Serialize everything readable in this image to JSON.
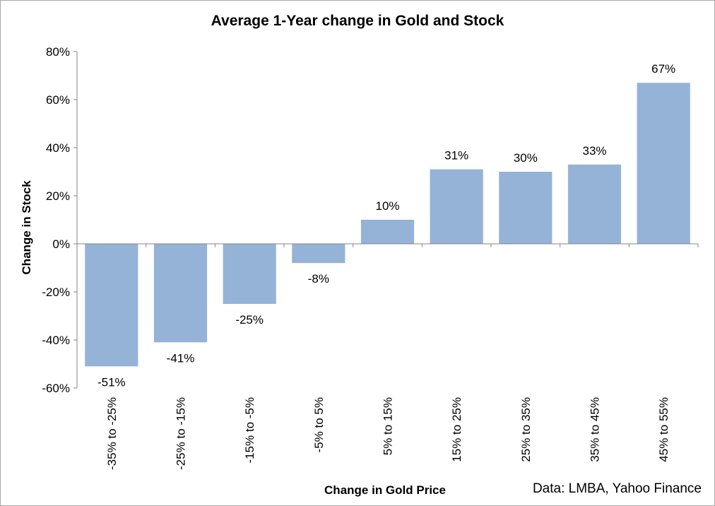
{
  "chart_data": {
    "type": "bar",
    "title": "Average 1-Year change in Gold and Stock",
    "xlabel": "Change in Gold Price",
    "ylabel": "Change in Stock",
    "source": "Data: LMBA, Yahoo Finance",
    "categories": [
      "-35% to -25%",
      "-25% to -15%",
      "-15% to -5%",
      "-5% to 5%",
      "5% to 15%",
      "15% to 25%",
      "25% to 35%",
      "35% to 45%",
      "45% to 55%"
    ],
    "values": [
      -51,
      -41,
      -25,
      -8,
      10,
      31,
      30,
      33,
      67
    ],
    "data_labels": [
      "-51%",
      "-41%",
      "-25%",
      "-8%",
      "10%",
      "31%",
      "30%",
      "33%",
      "67%"
    ],
    "ylim": [
      -60,
      80
    ],
    "yticks": [
      80,
      60,
      40,
      20,
      0,
      -20,
      -40,
      -60
    ],
    "ytick_labels": [
      "80%",
      "60%",
      "40%",
      "20%",
      "0%",
      "-20%",
      "-40%",
      "-60%"
    ],
    "grid": false,
    "legend": "none",
    "bar_color": "#95b3d7"
  }
}
